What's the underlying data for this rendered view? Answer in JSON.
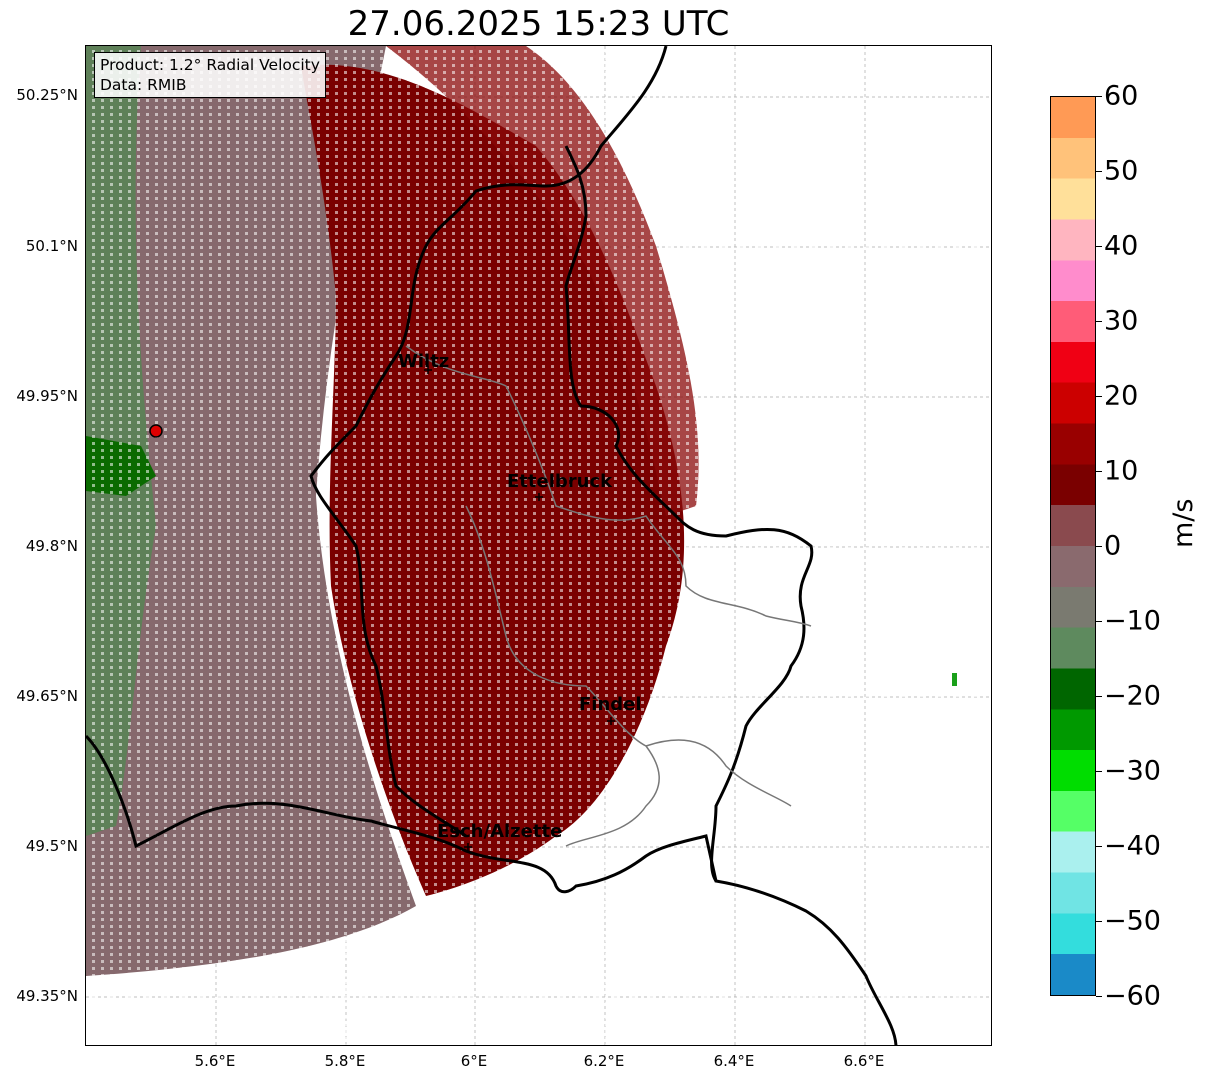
{
  "title": "27.06.2025 15:23 UTC",
  "info_box": {
    "product": "Product: 1.2° Radial Velocity",
    "data_source": "Data: RMIB"
  },
  "axes": {
    "lat_ticks": [
      "50.25°N",
      "50.1°N",
      "49.95°N",
      "49.8°N",
      "49.65°N",
      "49.5°N",
      "49.35°N"
    ],
    "lon_ticks": [
      "5.6°E",
      "5.8°E",
      "6°E",
      "6.2°E",
      "6.4°E",
      "6.6°E"
    ],
    "grid": true
  },
  "cities": [
    {
      "name": "Wiltz",
      "lon": 5.95,
      "lat": 49.97
    },
    {
      "name": "Ettelbruck",
      "lon": 6.1,
      "lat": 49.85
    },
    {
      "name": "Findel",
      "lon": 6.21,
      "lat": 49.63
    },
    {
      "name": "Esch/Alzette",
      "lon": 5.98,
      "lat": 49.5
    }
  ],
  "radar_site": {
    "lon": 5.51,
    "lat": 49.92
  },
  "colorbar": {
    "label": "m/s",
    "ticks": [
      "60",
      "50",
      "40",
      "30",
      "20",
      "10",
      "0",
      "−10",
      "−20",
      "−30",
      "−40",
      "−50",
      "−60"
    ],
    "min": -60,
    "max": 60,
    "colors_top_to_bottom": [
      "#ff9a55",
      "#ffc27a",
      "#ffe09a",
      "#ffb5c0",
      "#ff8ccc",
      "#ff5c78",
      "#f00014",
      "#cc0000",
      "#990000",
      "#7a0000",
      "#8a4a4e",
      "#8a6a6e",
      "#7a7a70",
      "#5e8a5e",
      "#006600",
      "#009900",
      "#00dd00",
      "#55ff66",
      "#aaf0ee",
      "#70e4e4",
      "#33dddd",
      "#1a8ac8"
    ]
  }
}
